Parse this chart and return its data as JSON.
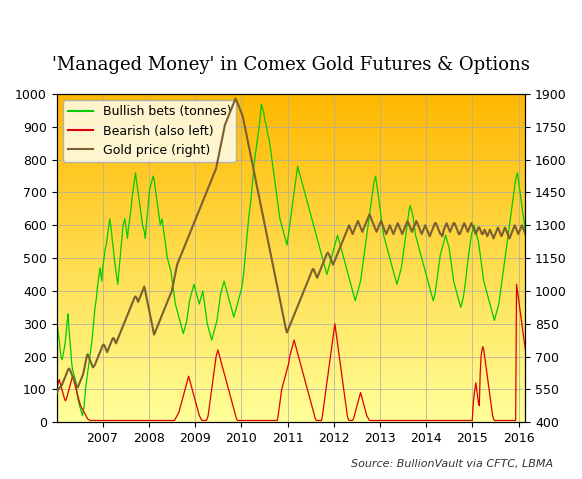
{
  "title": "'Managed Money' in Comex Gold Futures & Options",
  "source_text": "Source: BullionVault via CFTC, LBMA",
  "legend_labels": [
    "Bullish bets (tonnes)",
    "Bearish (also left)",
    "Gold price (right)"
  ],
  "line_colors": [
    "#00cc00",
    "#dd0000",
    "#7a6030"
  ],
  "ylim_left": [
    0,
    1000
  ],
  "ylim_right": [
    400,
    1900
  ],
  "yticks_left": [
    0,
    100,
    200,
    300,
    400,
    500,
    600,
    700,
    800,
    900,
    1000
  ],
  "yticks_right": [
    400,
    550,
    700,
    850,
    1000,
    1150,
    1300,
    1450,
    1600,
    1750,
    1900
  ],
  "bg_top_color": "#FFB800",
  "bg_bottom_color": "#FFFF99",
  "grid_color": "#aaaaaa",
  "title_fontsize": 13,
  "axis_fontsize": 9,
  "legend_fontsize": 9,
  "source_fontsize": 8,
  "bullish": [
    320,
    290,
    270,
    250,
    220,
    200,
    190,
    200,
    215,
    230,
    250,
    280,
    310,
    330,
    280,
    250,
    220,
    180,
    160,
    150,
    140,
    130,
    120,
    90,
    70,
    60,
    50,
    40,
    30,
    20,
    30,
    50,
    80,
    110,
    130,
    150,
    170,
    190,
    210,
    230,
    250,
    280,
    310,
    340,
    360,
    380,
    410,
    430,
    450,
    470,
    450,
    430,
    470,
    490,
    510,
    530,
    540,
    560,
    580,
    600,
    620,
    600,
    580,
    550,
    530,
    500,
    480,
    460,
    440,
    420,
    450,
    480,
    510,
    540,
    570,
    600,
    610,
    620,
    600,
    580,
    560,
    590,
    610,
    630,
    650,
    680,
    700,
    720,
    740,
    760,
    740,
    720,
    700,
    680,
    660,
    640,
    620,
    600,
    590,
    580,
    560,
    590,
    620,
    650,
    680,
    710,
    720,
    730,
    740,
    750,
    740,
    720,
    700,
    680,
    660,
    640,
    620,
    600,
    610,
    620,
    600,
    580,
    560,
    540,
    520,
    500,
    490,
    480,
    470,
    460,
    440,
    420,
    400,
    380,
    360,
    350,
    340,
    330,
    320,
    310,
    300,
    290,
    280,
    270,
    280,
    290,
    300,
    310,
    330,
    350,
    370,
    380,
    390,
    400,
    410,
    420,
    410,
    400,
    390,
    380,
    370,
    360,
    370,
    380,
    390,
    400,
    380,
    360,
    340,
    320,
    300,
    290,
    280,
    270,
    260,
    250,
    260,
    270,
    280,
    290,
    300,
    310,
    330,
    350,
    370,
    390,
    400,
    410,
    420,
    430,
    420,
    410,
    400,
    390,
    380,
    370,
    360,
    350,
    340,
    330,
    320,
    330,
    340,
    350,
    360,
    370,
    380,
    390,
    400,
    410,
    430,
    450,
    480,
    510,
    540,
    570,
    600,
    630,
    650,
    670,
    700,
    730,
    760,
    790,
    810,
    830,
    850,
    870,
    890,
    910,
    940,
    970,
    960,
    950,
    940,
    920,
    910,
    900,
    880,
    870,
    860,
    840,
    820,
    800,
    780,
    760,
    740,
    720,
    700,
    680,
    660,
    640,
    620,
    610,
    600,
    590,
    580,
    570,
    560,
    550,
    540,
    560,
    580,
    600,
    620,
    640,
    660,
    680,
    700,
    720,
    740,
    760,
    780,
    770,
    760,
    750,
    740,
    730,
    720,
    710,
    700,
    690,
    680,
    670,
    660,
    650,
    640,
    630,
    620,
    610,
    600,
    590,
    580,
    570,
    560,
    550,
    540,
    530,
    520,
    510,
    500,
    490,
    480,
    470,
    460,
    450,
    460,
    470,
    480,
    490,
    500,
    510,
    520,
    530,
    540,
    550,
    560,
    570,
    560,
    550,
    540,
    530,
    520,
    510,
    500,
    490,
    480,
    470,
    460,
    450,
    440,
    430,
    420,
    410,
    400,
    390,
    380,
    370,
    380,
    390,
    400,
    410,
    420,
    430,
    450,
    470,
    490,
    510,
    530,
    550,
    570,
    590,
    610,
    630,
    650,
    670,
    690,
    710,
    730,
    740,
    750,
    730,
    710,
    690,
    670,
    650,
    630,
    610,
    590,
    570,
    560,
    550,
    540,
    530,
    520,
    510,
    500,
    490,
    480,
    470,
    460,
    450,
    440,
    430,
    420,
    430,
    440,
    450,
    460,
    470,
    490,
    510,
    530,
    550,
    570,
    590,
    610,
    630,
    650,
    660,
    650,
    640,
    630,
    610,
    590,
    570,
    560,
    550,
    540,
    530,
    520,
    510,
    500,
    490,
    480,
    470,
    460,
    450,
    440,
    430,
    420,
    410,
    400,
    390,
    380,
    370,
    380,
    390,
    410,
    430,
    450,
    470,
    490,
    510,
    520,
    530,
    540,
    550,
    560,
    570,
    560,
    550,
    540,
    530,
    510,
    490,
    470,
    450,
    430,
    420,
    410,
    400,
    390,
    380,
    370,
    360,
    350,
    360,
    370,
    380,
    400,
    420,
    440,
    470,
    490,
    510,
    530,
    550,
    570,
    580,
    590,
    600,
    590,
    580,
    570,
    560,
    550,
    530,
    510,
    490,
    470,
    450,
    430,
    420,
    410,
    400,
    390,
    380,
    370,
    360,
    350,
    340,
    330,
    320,
    310,
    320,
    330,
    340,
    350,
    360,
    380,
    400,
    420,
    440,
    460,
    480,
    500,
    520,
    540,
    560,
    580,
    600,
    620,
    640,
    660,
    680,
    700,
    720,
    740,
    750,
    760,
    740,
    720,
    700,
    680,
    660,
    640,
    620,
    600,
    580
  ],
  "bearish": [
    100,
    110,
    120,
    130,
    120,
    110,
    100,
    90,
    80,
    70,
    65,
    70,
    80,
    90,
    100,
    110,
    120,
    130,
    140,
    130,
    120,
    110,
    100,
    90,
    80,
    70,
    60,
    50,
    45,
    40,
    35,
    30,
    25,
    20,
    15,
    10,
    8,
    6,
    5,
    5,
    5,
    5,
    5,
    5,
    5,
    5,
    5,
    5,
    5,
    5,
    5,
    5,
    5,
    5,
    5,
    5,
    5,
    5,
    5,
    5,
    5,
    5,
    5,
    5,
    5,
    5,
    5,
    5,
    5,
    5,
    5,
    5,
    5,
    5,
    5,
    5,
    5,
    5,
    5,
    5,
    5,
    5,
    5,
    5,
    5,
    5,
    5,
    5,
    5,
    5,
    5,
    5,
    5,
    5,
    5,
    5,
    5,
    5,
    5,
    5,
    5,
    5,
    5,
    5,
    5,
    5,
    5,
    5,
    5,
    5,
    5,
    5,
    5,
    5,
    5,
    5,
    5,
    5,
    5,
    5,
    5,
    5,
    5,
    5,
    5,
    5,
    5,
    5,
    5,
    5,
    5,
    5,
    5,
    5,
    10,
    15,
    20,
    25,
    30,
    40,
    50,
    60,
    70,
    80,
    90,
    100,
    110,
    120,
    130,
    140,
    130,
    120,
    110,
    100,
    90,
    80,
    70,
    60,
    50,
    40,
    30,
    20,
    15,
    10,
    5,
    5,
    5,
    5,
    5,
    5,
    10,
    20,
    40,
    60,
    80,
    100,
    120,
    140,
    160,
    180,
    200,
    210,
    220,
    210,
    200,
    190,
    180,
    170,
    160,
    150,
    140,
    130,
    120,
    110,
    100,
    90,
    80,
    70,
    60,
    50,
    40,
    30,
    20,
    10,
    5,
    5,
    5,
    5,
    5,
    5,
    5,
    5,
    5,
    5,
    5,
    5,
    5,
    5,
    5,
    5,
    5,
    5,
    5,
    5,
    5,
    5,
    5,
    5,
    5,
    5,
    5,
    5,
    5,
    5,
    5,
    5,
    5,
    5,
    5,
    5,
    5,
    5,
    5,
    5,
    5,
    5,
    5,
    5,
    5,
    5,
    20,
    40,
    60,
    80,
    100,
    110,
    120,
    130,
    140,
    150,
    160,
    170,
    180,
    200,
    210,
    220,
    230,
    240,
    250,
    240,
    230,
    220,
    210,
    200,
    190,
    180,
    170,
    160,
    150,
    140,
    130,
    120,
    110,
    100,
    90,
    80,
    70,
    60,
    50,
    40,
    30,
    20,
    10,
    5,
    5,
    5,
    5,
    5,
    5,
    5,
    20,
    40,
    60,
    80,
    100,
    120,
    140,
    160,
    180,
    200,
    220,
    240,
    260,
    280,
    300,
    280,
    260,
    240,
    220,
    200,
    180,
    160,
    140,
    120,
    100,
    80,
    60,
    40,
    20,
    10,
    5,
    5,
    5,
    5,
    5,
    10,
    20,
    30,
    40,
    50,
    60,
    70,
    80,
    90,
    80,
    70,
    60,
    50,
    40,
    30,
    20,
    15,
    10,
    5,
    5,
    5,
    5,
    5,
    5,
    5,
    5,
    5,
    5,
    5,
    5,
    5,
    5,
    5,
    5,
    5,
    5,
    5,
    5,
    5,
    5,
    5,
    5,
    5,
    5,
    5,
    5,
    5,
    5,
    5,
    5,
    5,
    5,
    5,
    5,
    5,
    5,
    5,
    5,
    5,
    5,
    5,
    5,
    5,
    5,
    5,
    5,
    5,
    5,
    5,
    5,
    5,
    5,
    5,
    5,
    5,
    5,
    5,
    5,
    5,
    5,
    5,
    5,
    5,
    5,
    5,
    5,
    5,
    5,
    5,
    5,
    5,
    5,
    5,
    5,
    5,
    5,
    5,
    5,
    5,
    5,
    5,
    5,
    5,
    5,
    5,
    5,
    5,
    5,
    5,
    5,
    5,
    5,
    5,
    5,
    5,
    5,
    5,
    5,
    5,
    5,
    5,
    5,
    5,
    5,
    5,
    5,
    5,
    5,
    5,
    5,
    5,
    5,
    5,
    5,
    5,
    50,
    80,
    100,
    120,
    100,
    80,
    60,
    50,
    150,
    200,
    220,
    230,
    220,
    200,
    180,
    160,
    140,
    120,
    100,
    80,
    60,
    40,
    20,
    10,
    5,
    5,
    5,
    5,
    5,
    5,
    5,
    5,
    5,
    5,
    5,
    5,
    5,
    5,
    5,
    5,
    5,
    5,
    5,
    5,
    5,
    5,
    5,
    5,
    5,
    420,
    400,
    380,
    360,
    340,
    320,
    300,
    280,
    260,
    240,
    220
  ],
  "gold": [
    530,
    540,
    550,
    555,
    560,
    565,
    570,
    580,
    590,
    600,
    610,
    620,
    630,
    640,
    645,
    640,
    630,
    620,
    610,
    600,
    590,
    580,
    570,
    565,
    560,
    570,
    580,
    590,
    600,
    610,
    620,
    640,
    660,
    680,
    700,
    710,
    700,
    690,
    680,
    670,
    660,
    650,
    655,
    660,
    670,
    680,
    690,
    700,
    710,
    720,
    730,
    740,
    750,
    755,
    750,
    740,
    730,
    720,
    730,
    740,
    750,
    760,
    770,
    780,
    785,
    780,
    770,
    760,
    770,
    780,
    790,
    800,
    810,
    820,
    830,
    840,
    850,
    860,
    870,
    880,
    890,
    900,
    910,
    920,
    930,
    940,
    950,
    960,
    970,
    975,
    970,
    960,
    950,
    960,
    970,
    980,
    990,
    1000,
    1010,
    1020,
    1000,
    980,
    960,
    940,
    920,
    900,
    880,
    860,
    840,
    820,
    800,
    810,
    820,
    830,
    840,
    850,
    860,
    870,
    880,
    890,
    900,
    910,
    920,
    930,
    940,
    950,
    960,
    970,
    980,
    990,
    1000,
    1020,
    1040,
    1060,
    1080,
    1100,
    1120,
    1130,
    1140,
    1150,
    1160,
    1170,
    1180,
    1190,
    1200,
    1210,
    1220,
    1230,
    1240,
    1250,
    1260,
    1270,
    1280,
    1290,
    1300,
    1310,
    1320,
    1330,
    1340,
    1350,
    1360,
    1370,
    1380,
    1390,
    1400,
    1410,
    1420,
    1430,
    1440,
    1450,
    1460,
    1470,
    1480,
    1490,
    1500,
    1510,
    1520,
    1530,
    1540,
    1550,
    1560,
    1580,
    1600,
    1620,
    1640,
    1660,
    1680,
    1700,
    1720,
    1740,
    1760,
    1770,
    1780,
    1790,
    1800,
    1810,
    1820,
    1830,
    1840,
    1850,
    1860,
    1870,
    1880,
    1870,
    1860,
    1850,
    1840,
    1830,
    1820,
    1810,
    1800,
    1780,
    1760,
    1740,
    1720,
    1700,
    1680,
    1660,
    1640,
    1620,
    1600,
    1580,
    1560,
    1540,
    1520,
    1500,
    1480,
    1460,
    1440,
    1420,
    1400,
    1380,
    1360,
    1340,
    1320,
    1300,
    1280,
    1260,
    1240,
    1220,
    1200,
    1180,
    1160,
    1140,
    1120,
    1100,
    1080,
    1060,
    1040,
    1020,
    1000,
    980,
    960,
    940,
    920,
    900,
    880,
    860,
    840,
    820,
    810,
    820,
    830,
    840,
    850,
    860,
    870,
    880,
    890,
    900,
    910,
    920,
    930,
    940,
    950,
    960,
    970,
    980,
    990,
    1000,
    1010,
    1020,
    1030,
    1040,
    1050,
    1060,
    1070,
    1080,
    1090,
    1100,
    1100,
    1090,
    1080,
    1070,
    1060,
    1070,
    1080,
    1090,
    1100,
    1110,
    1120,
    1130,
    1140,
    1150,
    1160,
    1170,
    1175,
    1170,
    1160,
    1150,
    1140,
    1130,
    1120,
    1130,
    1140,
    1150,
    1160,
    1170,
    1180,
    1190,
    1200,
    1210,
    1220,
    1230,
    1240,
    1250,
    1260,
    1270,
    1280,
    1290,
    1300,
    1290,
    1280,
    1270,
    1260,
    1270,
    1280,
    1290,
    1300,
    1310,
    1320,
    1310,
    1300,
    1290,
    1280,
    1270,
    1280,
    1290,
    1300,
    1310,
    1320,
    1330,
    1340,
    1350,
    1340,
    1330,
    1320,
    1310,
    1300,
    1290,
    1280,
    1270,
    1280,
    1290,
    1300,
    1310,
    1320,
    1310,
    1300,
    1290,
    1280,
    1270,
    1260,
    1270,
    1280,
    1290,
    1300,
    1290,
    1280,
    1270,
    1260,
    1270,
    1280,
    1290,
    1300,
    1310,
    1300,
    1290,
    1280,
    1270,
    1260,
    1270,
    1280,
    1290,
    1300,
    1310,
    1320,
    1310,
    1300,
    1290,
    1280,
    1270,
    1280,
    1290,
    1300,
    1310,
    1320,
    1310,
    1300,
    1290,
    1280,
    1270,
    1260,
    1270,
    1280,
    1290,
    1300,
    1290,
    1280,
    1270,
    1260,
    1250,
    1260,
    1270,
    1280,
    1290,
    1300,
    1310,
    1310,
    1300,
    1290,
    1280,
    1270,
    1260,
    1260,
    1250,
    1260,
    1280,
    1290,
    1300,
    1310,
    1300,
    1290,
    1280,
    1270,
    1280,
    1290,
    1300,
    1310,
    1310,
    1300,
    1290,
    1280,
    1270,
    1260,
    1260,
    1270,
    1280,
    1290,
    1300,
    1310,
    1300,
    1290,
    1280,
    1270,
    1280,
    1290,
    1300,
    1310,
    1300,
    1290,
    1280,
    1270,
    1260,
    1270,
    1280,
    1290,
    1290,
    1280,
    1270,
    1260,
    1260,
    1270,
    1280,
    1270,
    1260,
    1250,
    1260,
    1270,
    1280,
    1270,
    1260,
    1250,
    1240,
    1250,
    1260,
    1270,
    1280,
    1290,
    1280,
    1270,
    1260,
    1250,
    1260,
    1270,
    1280,
    1290,
    1280,
    1270,
    1260,
    1250,
    1240,
    1250,
    1260,
    1270,
    1280,
    1290,
    1300,
    1290,
    1280,
    1270,
    1260,
    1270,
    1280,
    1290,
    1300,
    1290,
    1280,
    1270,
    1260
  ]
}
